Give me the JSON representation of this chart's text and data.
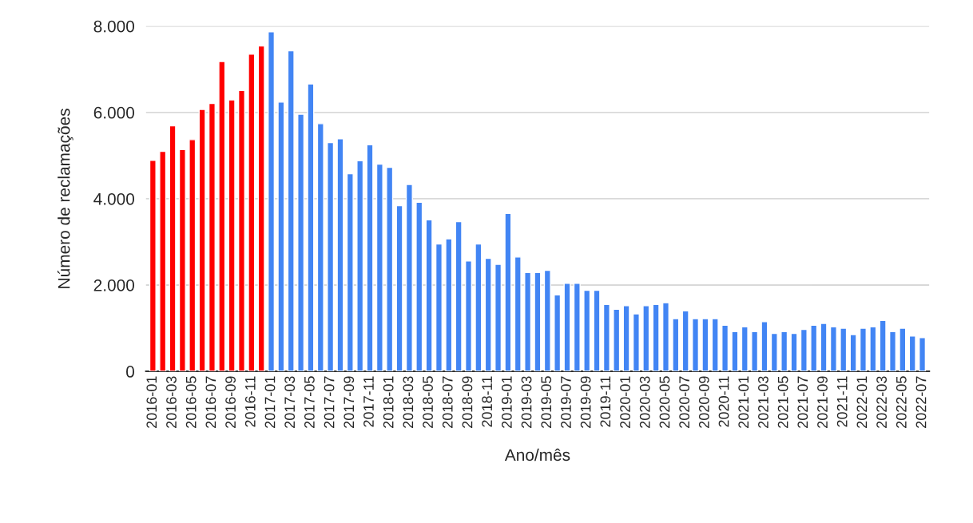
{
  "chart_data": {
    "type": "bar",
    "xlabel": "Ano/mês",
    "ylabel": "Número de reclamações",
    "categories": [
      "2016-01",
      null,
      "2016-03",
      null,
      "2016-05",
      null,
      "2016-07",
      null,
      "2016-09",
      null,
      "2016-11",
      null,
      "2017-01",
      null,
      "2017-03",
      null,
      "2017-05",
      null,
      "2017-07",
      null,
      "2017-09",
      null,
      "2017-11",
      null,
      "2018-01",
      null,
      "2018-03",
      null,
      "2018-05",
      null,
      "2018-07",
      null,
      "2018-09",
      null,
      "2018-11",
      null,
      "2019-01",
      null,
      "2019-03",
      null,
      "2019-05",
      null,
      "2019-07",
      null,
      "2019-09",
      null,
      "2019-11",
      null,
      "2020-01",
      null,
      "2020-03",
      null,
      "2020-05",
      null,
      "2020-07",
      null,
      "2020-09",
      null,
      "2020-11",
      null,
      "2021-01",
      null,
      "2021-03",
      null,
      "2021-05",
      null,
      "2021-07",
      null,
      "2021-09",
      null,
      "2021-11",
      null,
      "2022-01",
      null,
      "2022-03",
      null,
      "2022-05",
      null,
      "2022-07"
    ],
    "values": [
      4890,
      5100,
      5690,
      5140,
      5370,
      6070,
      6210,
      7180,
      6290,
      6510,
      7350,
      7540,
      7870,
      6240,
      7430,
      5960,
      6660,
      5740,
      5300,
      5390,
      4580,
      4880,
      5250,
      4800,
      4730,
      3840,
      4330,
      3920,
      3510,
      2950,
      3070,
      3470,
      2560,
      2950,
      2620,
      2480,
      3660,
      2650,
      2290,
      2290,
      2340,
      1770,
      2040,
      2040,
      1880,
      1880,
      1550,
      1440,
      1520,
      1330,
      1520,
      1550,
      1590,
      1220,
      1400,
      1220,
      1220,
      1220,
      1070,
      920,
      1030,
      920,
      1150,
      880,
      920,
      880,
      970,
      1070,
      1110,
      1030,
      1000,
      850,
      1000,
      1030,
      1180,
      920,
      1000,
      820,
      780
    ],
    "colors": [
      "#ff0000",
      "#ff0000",
      "#ff0000",
      "#ff0000",
      "#ff0000",
      "#ff0000",
      "#ff0000",
      "#ff0000",
      "#ff0000",
      "#ff0000",
      "#ff0000",
      "#ff0000",
      "#4285f4",
      "#4285f4",
      "#4285f4",
      "#4285f4",
      "#4285f4",
      "#4285f4",
      "#4285f4",
      "#4285f4",
      "#4285f4",
      "#4285f4",
      "#4285f4",
      "#4285f4",
      "#4285f4",
      "#4285f4",
      "#4285f4",
      "#4285f4",
      "#4285f4",
      "#4285f4",
      "#4285f4",
      "#4285f4",
      "#4285f4",
      "#4285f4",
      "#4285f4",
      "#4285f4",
      "#4285f4",
      "#4285f4",
      "#4285f4",
      "#4285f4",
      "#4285f4",
      "#4285f4",
      "#4285f4",
      "#4285f4",
      "#4285f4",
      "#4285f4",
      "#4285f4",
      "#4285f4",
      "#4285f4",
      "#4285f4",
      "#4285f4",
      "#4285f4",
      "#4285f4",
      "#4285f4",
      "#4285f4",
      "#4285f4",
      "#4285f4",
      "#4285f4",
      "#4285f4",
      "#4285f4",
      "#4285f4",
      "#4285f4",
      "#4285f4",
      "#4285f4",
      "#4285f4",
      "#4285f4",
      "#4285f4",
      "#4285f4",
      "#4285f4",
      "#4285f4",
      "#4285f4",
      "#4285f4",
      "#4285f4",
      "#4285f4",
      "#4285f4",
      "#4285f4",
      "#4285f4",
      "#4285f4",
      "#4285f4"
    ],
    "ylim": [
      0,
      8000
    ],
    "yticks": [
      0,
      {
        "value": 2000,
        "label": "2.000"
      },
      {
        "value": 4000,
        "label": "4.000"
      },
      {
        "value": 6000,
        "label": "6.000"
      },
      {
        "value": 8000,
        "label": "8.000"
      }
    ],
    "grid": "y",
    "legend": false
  }
}
